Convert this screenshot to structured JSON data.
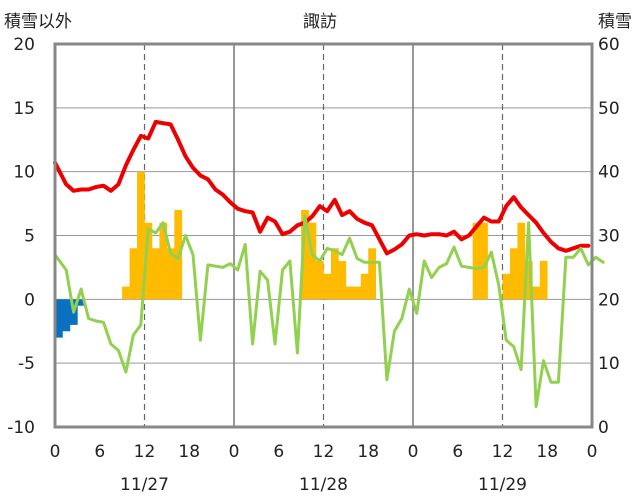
{
  "chart_data": {
    "type": "mixed",
    "title": "諏訪",
    "left_axis_label": "積雪以外",
    "right_axis_label": "積雪",
    "left_axis": {
      "ylim": [
        -10,
        20
      ],
      "ticks": [
        "-10",
        "-5",
        "0",
        "5",
        "10",
        "15",
        "20"
      ]
    },
    "right_axis": {
      "ylim": [
        0,
        60
      ],
      "ticks": [
        "0",
        "10",
        "20",
        "30",
        "40",
        "50",
        "60"
      ]
    },
    "x_hours_total": 72,
    "x_tick_labels": [
      "0",
      "6",
      "12",
      "18",
      "0",
      "6",
      "12",
      "18",
      "0",
      "6",
      "12",
      "18",
      "0"
    ],
    "date_labels": [
      "11/27",
      "11/28",
      "11/29"
    ],
    "grid": true,
    "colors": {
      "temperature": "#ee0000",
      "precip_orange": "#ffbb00",
      "precip_blue": "#0a70c0",
      "green_series": "#92d050",
      "snow_depth": "#7030a0",
      "frame": "#888888"
    },
    "series": [
      {
        "type": "line",
        "axis": "left",
        "color": "#ee0000",
        "values": [
          10.7,
          9.0,
          8.5,
          8.6,
          8.6,
          8.8,
          8.9,
          8.5,
          9.0,
          10.5,
          11.7,
          12.8,
          12.6,
          13.9,
          13.8,
          13.7,
          12.5,
          11.2,
          10.3,
          9.7,
          9.4,
          8.6,
          8.2,
          7.6,
          7.1,
          6.9,
          6.8,
          5.3,
          6.4,
          6.1,
          5.1,
          5.3,
          5.8,
          6.0,
          6.5,
          7.3,
          6.9,
          7.8,
          6.6,
          6.9,
          6.3,
          6.0,
          5.8,
          4.7,
          3.6,
          3.9,
          4.3,
          5.0,
          5.1,
          5.0,
          5.1,
          5.1,
          5.0,
          5.3,
          4.7,
          5.0,
          5.7,
          6.4,
          6.1,
          6.1,
          7.3,
          8.0,
          7.2,
          6.6,
          6.0,
          5.2,
          4.5,
          4.0,
          3.8,
          4.0,
          4.2,
          4.2,
          null
        ]
      },
      {
        "type": "line",
        "axis": "left",
        "color": "#92d050",
        "values": [
          3.5,
          2.3,
          -1.0,
          0.8,
          -1.5,
          -1.7,
          -1.8,
          -3.5,
          -4.0,
          -5.7,
          -2.8,
          -2.0,
          5.5,
          5.2,
          6.0,
          3.6,
          3.2,
          5.0,
          3.5,
          -3.2,
          2.7,
          2.6,
          2.5,
          2.8,
          2.3,
          4.3,
          -3.5,
          2.2,
          1.5,
          -3.5,
          2.3,
          3.0,
          -4.2,
          6.5,
          3.5,
          3.0,
          4.0,
          3.8,
          3.5,
          4.8,
          3.2,
          2.9,
          2.9,
          2.9,
          -6.3,
          -2.5,
          -1.5,
          0.8,
          -1.1,
          3.0,
          1.7,
          2.5,
          2.8,
          4.1,
          2.6,
          2.5,
          2.4,
          2.5,
          3.7,
          1.1,
          -3.2,
          -3.7,
          -5.5,
          6.0,
          -8.4,
          -4.8,
          -6.5,
          -6.5,
          3.3,
          3.3,
          4.0,
          2.7,
          3.3,
          2.9
        ]
      },
      {
        "type": "bar",
        "axis": "left",
        "color": "#ffbb00",
        "values": [
          0,
          0,
          0,
          0,
          0,
          0,
          0,
          0,
          0,
          1.0,
          4.0,
          10.0,
          6.0,
          4.0,
          6.0,
          4.0,
          7.0,
          0,
          0,
          0,
          0,
          0,
          0,
          0,
          0,
          0,
          0,
          0,
          0,
          0,
          0,
          0,
          0,
          7.0,
          6.0,
          3.0,
          2.0,
          4.0,
          3.0,
          1.0,
          1.0,
          2.0,
          4.0,
          0,
          0,
          0,
          0,
          0,
          0,
          0,
          0,
          0,
          0,
          0,
          0,
          0,
          6.0,
          6.0,
          0,
          0,
          2.0,
          4.0,
          6.0,
          3.0,
          1.0,
          3.0,
          0,
          0,
          0,
          0,
          0,
          0
        ]
      },
      {
        "type": "bar",
        "axis": "left",
        "color": "#0a70c0",
        "values": [
          -3.0,
          -2.5,
          -2.0,
          -0.5,
          0,
          0,
          0,
          0,
          0,
          0,
          0,
          0,
          0,
          0,
          0,
          0,
          0,
          0,
          0,
          0,
          0,
          0,
          0,
          0,
          0,
          0,
          0,
          0,
          0,
          0,
          0,
          0,
          0,
          0,
          0,
          0,
          0,
          0,
          0,
          0,
          0,
          0,
          0,
          0,
          0,
          0,
          0,
          0,
          0,
          0,
          0,
          0,
          0,
          0,
          0,
          0,
          0,
          0,
          0,
          0,
          0,
          0,
          0,
          0,
          0,
          0,
          0,
          0,
          0,
          0,
          0,
          0
        ]
      },
      {
        "type": "line",
        "axis": "right",
        "color": "#7030a0",
        "values": [
          0,
          0
        ]
      }
    ]
  }
}
